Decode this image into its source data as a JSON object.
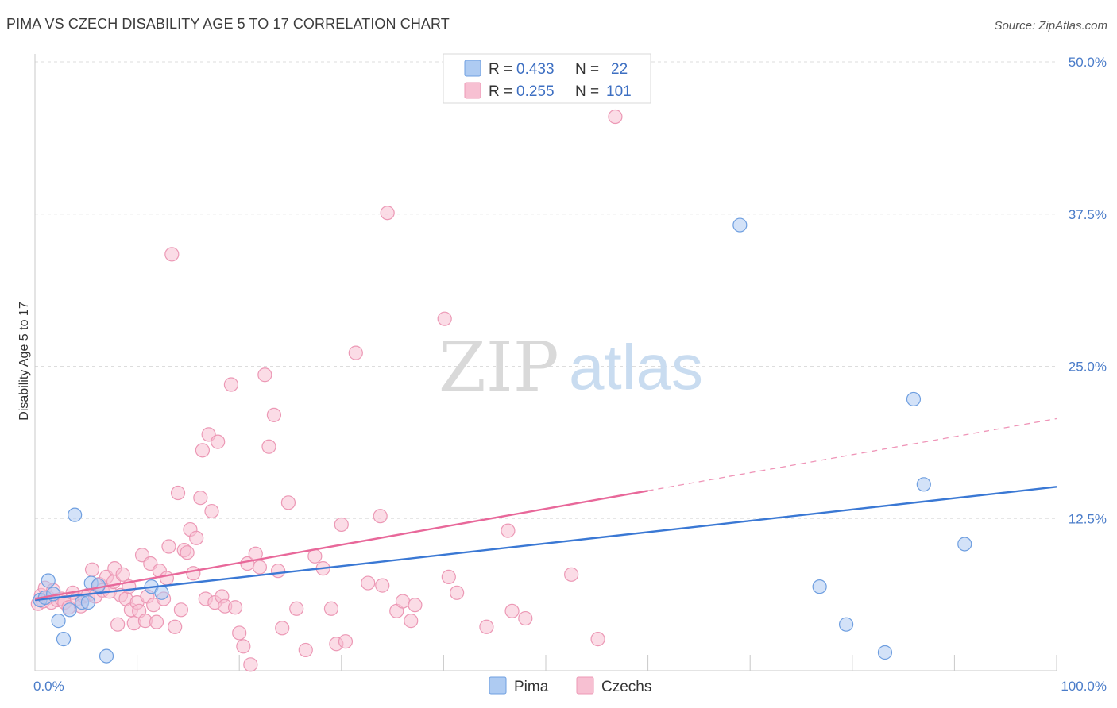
{
  "title": "PIMA VS CZECH DISABILITY AGE 5 TO 17 CORRELATION CHART",
  "source": "Source: ZipAtlas.com",
  "watermark": {
    "zip": "ZIP",
    "atlas": "atlas"
  },
  "colors": {
    "pima_fill": "#aecbf2",
    "pima_stroke": "#6f9fe0",
    "pima_line": "#3a78d4",
    "czech_fill": "#f7c0d2",
    "czech_stroke": "#ec98b5",
    "czech_line": "#e8689a",
    "grid": "#dddddd",
    "axis_label": "#4a7cc9"
  },
  "legend": {
    "rows": [
      {
        "r_label": "R = ",
        "r_value": "0.433",
        "n_label": "N = ",
        "n_value": "22"
      },
      {
        "r_label": "R = ",
        "r_value": "0.255",
        "n_label": "N = ",
        "n_value": "101"
      }
    ]
  },
  "bottom_legend": [
    "Pima",
    "Czechs"
  ],
  "chart_data": {
    "type": "scatter",
    "title": "PIMA VS CZECH DISABILITY AGE 5 TO 17 CORRELATION CHART",
    "xlabel": "",
    "ylabel": "Disability Age 5 to 17",
    "xlim": [
      0,
      100
    ],
    "ylim": [
      0,
      50
    ],
    "x_tick_labels": [
      {
        "value": 0,
        "label": "0.0%"
      },
      {
        "value": 100,
        "label": "100.0%"
      }
    ],
    "y_tick_labels": [
      {
        "value": 12.5,
        "label": "12.5%"
      },
      {
        "value": 25,
        "label": "25.0%"
      },
      {
        "value": 37.5,
        "label": "37.5%"
      },
      {
        "value": 50,
        "label": "50.0%"
      }
    ],
    "series": [
      {
        "name": "Pima",
        "r": 0.433,
        "n": 22,
        "trend": {
          "x0": 0,
          "y0": 5.8,
          "x1": 100,
          "y1": 15.1,
          "solid_until": 100
        },
        "points": [
          [
            0.5,
            5.8
          ],
          [
            1.0,
            6.0
          ],
          [
            1.3,
            7.4
          ],
          [
            1.8,
            6.3
          ],
          [
            2.3,
            4.1
          ],
          [
            2.8,
            2.6
          ],
          [
            3.4,
            5.0
          ],
          [
            3.9,
            12.8
          ],
          [
            4.6,
            5.6
          ],
          [
            5.2,
            5.6
          ],
          [
            5.5,
            7.2
          ],
          [
            6.2,
            7.0
          ],
          [
            7.0,
            1.2
          ],
          [
            11.4,
            6.9
          ],
          [
            12.4,
            6.4
          ],
          [
            69.0,
            36.6
          ],
          [
            76.8,
            6.9
          ],
          [
            79.4,
            3.8
          ],
          [
            83.2,
            1.5
          ],
          [
            86.0,
            22.3
          ],
          [
            87.0,
            15.3
          ],
          [
            91.0,
            10.4
          ]
        ]
      },
      {
        "name": "Czechs",
        "r": 0.255,
        "n": 101,
        "trend": {
          "x0": 0,
          "y0": 5.9,
          "x1": 100,
          "y1": 20.7,
          "solid_until": 60
        },
        "points": [
          [
            0.3,
            5.5
          ],
          [
            0.6,
            6.2
          ],
          [
            0.8,
            5.7
          ],
          [
            1.0,
            6.8
          ],
          [
            1.3,
            6.0
          ],
          [
            1.6,
            5.6
          ],
          [
            1.8,
            6.6
          ],
          [
            2.2,
            5.8
          ],
          [
            2.6,
            5.9
          ],
          [
            2.9,
            5.6
          ],
          [
            3.3,
            5.2
          ],
          [
            3.7,
            6.4
          ],
          [
            4.1,
            5.9
          ],
          [
            4.5,
            5.3
          ],
          [
            4.8,
            6.1
          ],
          [
            5.2,
            6.2
          ],
          [
            5.6,
            8.3
          ],
          [
            5.9,
            6.1
          ],
          [
            6.3,
            7.1
          ],
          [
            6.6,
            6.6
          ],
          [
            7.0,
            7.7
          ],
          [
            7.3,
            6.5
          ],
          [
            7.7,
            7.3
          ],
          [
            7.8,
            8.4
          ],
          [
            8.1,
            3.8
          ],
          [
            8.4,
            6.2
          ],
          [
            8.6,
            7.9
          ],
          [
            8.9,
            5.9
          ],
          [
            9.2,
            6.9
          ],
          [
            9.4,
            5.0
          ],
          [
            9.7,
            3.9
          ],
          [
            10.0,
            5.6
          ],
          [
            10.2,
            4.9
          ],
          [
            10.5,
            9.5
          ],
          [
            10.8,
            4.1
          ],
          [
            11.0,
            6.1
          ],
          [
            11.3,
            8.8
          ],
          [
            11.6,
            5.4
          ],
          [
            11.9,
            4.0
          ],
          [
            12.2,
            8.2
          ],
          [
            12.6,
            5.9
          ],
          [
            12.9,
            7.6
          ],
          [
            13.1,
            10.2
          ],
          [
            13.4,
            34.2
          ],
          [
            13.7,
            3.6
          ],
          [
            14.0,
            14.6
          ],
          [
            14.3,
            5.0
          ],
          [
            14.6,
            9.9
          ],
          [
            14.9,
            9.7
          ],
          [
            15.2,
            11.6
          ],
          [
            15.5,
            8.0
          ],
          [
            15.8,
            10.9
          ],
          [
            16.2,
            14.2
          ],
          [
            16.4,
            18.1
          ],
          [
            16.7,
            5.9
          ],
          [
            17.0,
            19.4
          ],
          [
            17.3,
            13.1
          ],
          [
            17.6,
            5.6
          ],
          [
            17.9,
            18.8
          ],
          [
            18.3,
            6.1
          ],
          [
            18.6,
            5.3
          ],
          [
            19.2,
            23.5
          ],
          [
            19.6,
            5.2
          ],
          [
            20.0,
            3.1
          ],
          [
            20.4,
            2.0
          ],
          [
            20.8,
            8.8
          ],
          [
            21.1,
            0.5
          ],
          [
            21.6,
            9.6
          ],
          [
            22.0,
            8.5
          ],
          [
            22.5,
            24.3
          ],
          [
            22.9,
            18.4
          ],
          [
            23.4,
            21.0
          ],
          [
            23.8,
            8.2
          ],
          [
            24.2,
            3.5
          ],
          [
            24.8,
            13.8
          ],
          [
            25.6,
            5.1
          ],
          [
            26.5,
            1.7
          ],
          [
            27.4,
            9.4
          ],
          [
            28.2,
            8.4
          ],
          [
            29.0,
            5.1
          ],
          [
            29.5,
            2.2
          ],
          [
            30.0,
            12.0
          ],
          [
            30.4,
            2.4
          ],
          [
            31.4,
            26.1
          ],
          [
            32.6,
            7.2
          ],
          [
            33.8,
            12.7
          ],
          [
            34.0,
            7.0
          ],
          [
            34.5,
            37.6
          ],
          [
            35.4,
            4.9
          ],
          [
            36.0,
            5.7
          ],
          [
            36.8,
            4.1
          ],
          [
            37.2,
            5.4
          ],
          [
            40.1,
            28.9
          ],
          [
            40.5,
            7.7
          ],
          [
            41.3,
            6.4
          ],
          [
            44.2,
            3.6
          ],
          [
            46.3,
            11.5
          ],
          [
            46.7,
            4.9
          ],
          [
            48.0,
            4.3
          ],
          [
            52.5,
            7.9
          ],
          [
            55.1,
            2.6
          ],
          [
            56.8,
            45.5
          ]
        ]
      }
    ]
  }
}
